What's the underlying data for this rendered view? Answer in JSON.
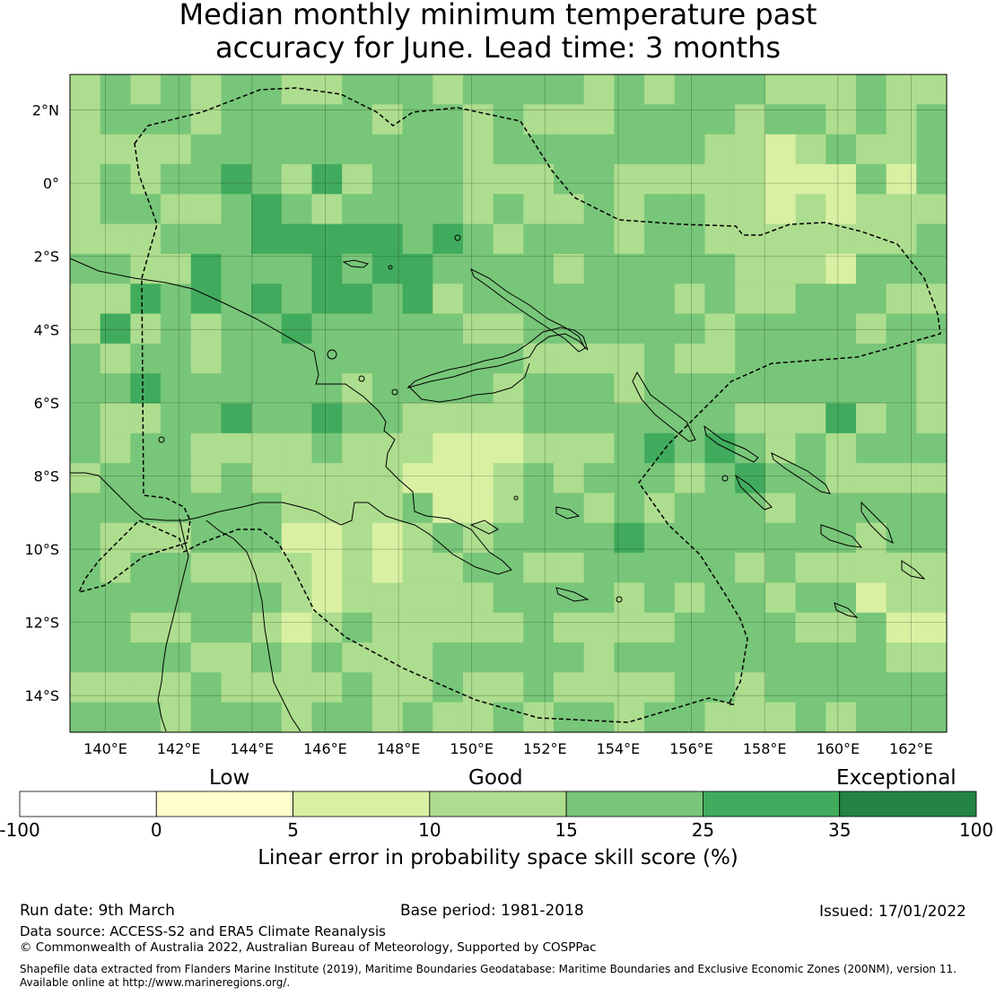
{
  "title": {
    "line1": "Median monthly minimum temperature past",
    "line2": "accuracy for June. Lead time: 3 months"
  },
  "map": {
    "lon_labels": [
      "140°E",
      "142°E",
      "144°E",
      "146°E",
      "148°E",
      "150°E",
      "152°E",
      "154°E",
      "156°E",
      "158°E",
      "160°E",
      "162°E"
    ],
    "lat_labels": [
      "2°N",
      "0°",
      "2°S",
      "4°S",
      "6°S",
      "8°S",
      "10°S",
      "12°S",
      "14°S"
    ]
  },
  "legend": {
    "category_labels": [
      "Low",
      "Good",
      "Exceptional"
    ],
    "ticks": [
      "-100",
      "0",
      "5",
      "10",
      "15",
      "25",
      "35",
      "100"
    ],
    "colors": [
      "#ffffff",
      "#ffffcc",
      "#d9f0a3",
      "#addd8e",
      "#78c679",
      "#41ab5d",
      "#238443"
    ],
    "title": "Linear error in probability space skill score (%)"
  },
  "footer": {
    "run_date": "Run date: 9th March",
    "base_period": "Base period: 1981-2018",
    "issued": "Issued: 17/01/2022",
    "data_source": "Data source: ACCESS-S2 and ERA5 Climate Reanalysis",
    "copyright": "© Commonwealth of Australia 2022, Australian Bureau of Meteorology, Supported by COSPPac",
    "shapefile_line1": "Shapefile data extracted from Flanders Marine Institute (2019), Maritime Boundaries Geodatabase: Maritime Boundaries and Exclusive Economic Zones (200NM), version 11.",
    "shapefile_line2": "Available online at http://www.marineregions.org/."
  }
}
